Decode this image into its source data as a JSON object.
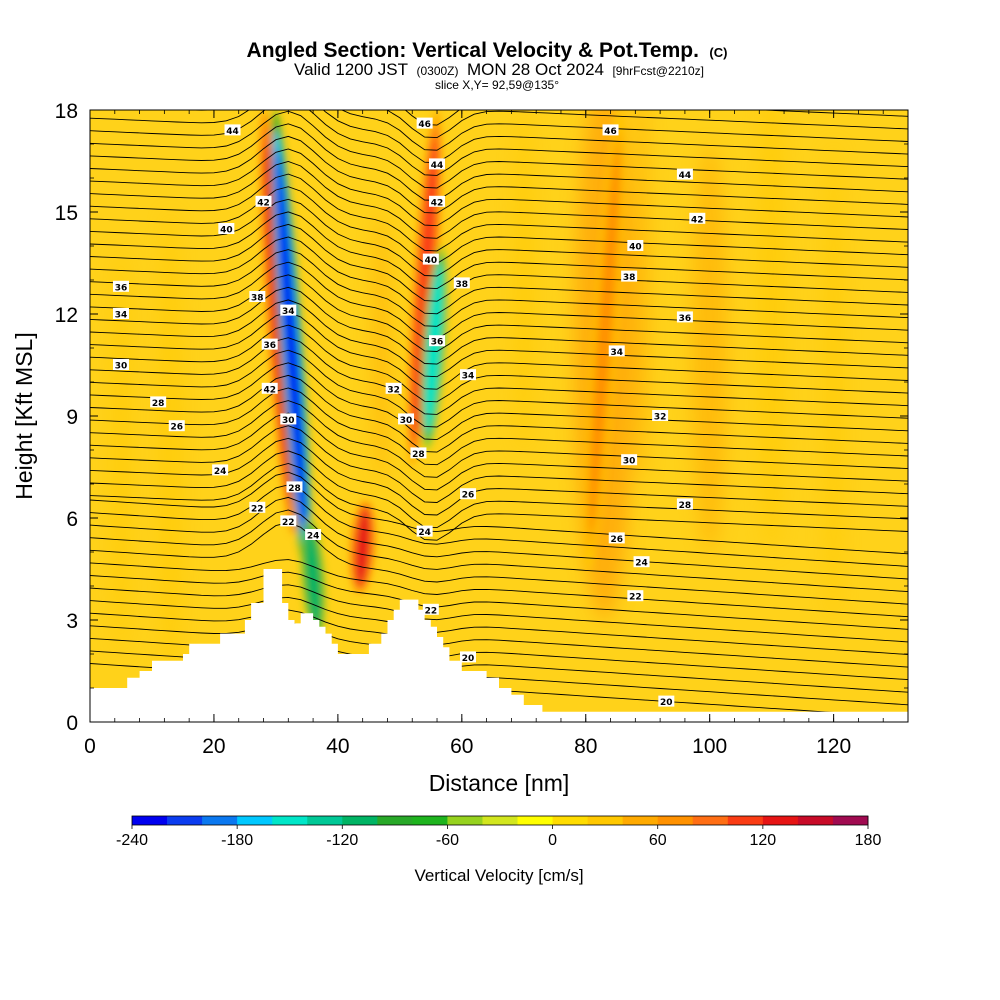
{
  "title": {
    "main": "Angled Section: Vertical Velocity & Pot.Temp.",
    "main_tag": "(C)",
    "valid_a": "Valid 1200 JST",
    "valid_b": "(0300Z)",
    "valid_c": "MON 28 Oct 2024",
    "valid_d": "[9hrFcst@2210z]",
    "slice": "slice X,Y= 92,59@135°"
  },
  "colors": {
    "background_field": "#FFD21A",
    "terrain": "#FFFFFF",
    "contour_line": "#000000",
    "scale": [
      "#0000F0",
      "#0A3CF0",
      "#0A78F0",
      "#00C8FF",
      "#00E6C8",
      "#00C896",
      "#00B464",
      "#28A828",
      "#1EB41E",
      "#96D21E",
      "#D2E61E",
      "#FFFF00",
      "#FFDC00",
      "#FFC800",
      "#FFAA00",
      "#FF9100",
      "#FF6E14",
      "#FA3C14",
      "#E61414",
      "#C80A28",
      "#A00A50",
      "#780A78",
      "#500A8C"
    ]
  },
  "chart_data": {
    "type": "heatmap",
    "xlabel": "Distance [nm]",
    "ylabel": "Height [Kft MSL]",
    "xlim": [
      0,
      132
    ],
    "ylim": [
      0,
      18
    ],
    "x_ticks": [
      0,
      20,
      40,
      60,
      80,
      100,
      120
    ],
    "y_ticks": [
      0,
      3,
      6,
      9,
      12,
      15,
      18
    ],
    "colorbar": {
      "label": "Vertical Velocity [cm/s]",
      "min": -240,
      "max": 180,
      "step": 20,
      "tick_values": [
        -240,
        -180,
        -120,
        -60,
        0,
        60,
        120,
        180
      ]
    },
    "terrain_profile": [
      [
        0,
        1.0
      ],
      [
        5,
        1.0
      ],
      [
        6,
        1.3
      ],
      [
        8,
        1.5
      ],
      [
        10,
        1.5
      ],
      [
        10,
        1.8
      ],
      [
        13,
        1.8
      ],
      [
        15,
        2.0
      ],
      [
        16,
        2.3
      ],
      [
        20,
        2.3
      ],
      [
        21,
        2.6
      ],
      [
        24,
        2.6
      ],
      [
        25,
        3.0
      ],
      [
        26,
        3.5
      ],
      [
        28,
        3.5
      ],
      [
        28,
        4.5
      ],
      [
        30,
        4.5
      ],
      [
        31,
        3.5
      ],
      [
        32,
        3.0
      ],
      [
        33,
        2.9
      ],
      [
        34,
        3.2
      ],
      [
        35,
        3.2
      ],
      [
        36,
        3.0
      ],
      [
        37,
        2.8
      ],
      [
        38,
        2.6
      ],
      [
        39,
        2.3
      ],
      [
        40,
        2.0
      ],
      [
        43,
        2.0
      ],
      [
        45,
        2.3
      ],
      [
        47,
        2.6
      ],
      [
        48,
        3.0
      ],
      [
        49,
        3.3
      ],
      [
        50,
        3.6
      ],
      [
        52,
        3.6
      ],
      [
        53,
        3.3
      ],
      [
        54,
        3.0
      ],
      [
        55,
        2.8
      ],
      [
        56,
        2.5
      ],
      [
        57,
        2.2
      ],
      [
        58,
        1.8
      ],
      [
        60,
        1.5
      ],
      [
        62,
        1.5
      ],
      [
        64,
        1.3
      ],
      [
        66,
        1.0
      ],
      [
        68,
        0.8
      ],
      [
        70,
        0.5
      ],
      [
        73,
        0.3
      ],
      [
        132,
        0.3
      ]
    ],
    "isentropes": {
      "units": "C",
      "labels": [
        {
          "x": 23,
          "y": 17.4,
          "value": "44"
        },
        {
          "x": 28,
          "y": 15.3,
          "value": "42"
        },
        {
          "x": 22,
          "y": 14.5,
          "value": "40"
        },
        {
          "x": 27,
          "y": 12.5,
          "value": "38"
        },
        {
          "x": 32,
          "y": 12.1,
          "value": "34"
        },
        {
          "x": 5,
          "y": 12.8,
          "value": "36"
        },
        {
          "x": 5,
          "y": 12.0,
          "value": "34"
        },
        {
          "x": 29,
          "y": 11.1,
          "value": "36"
        },
        {
          "x": 5,
          "y": 10.5,
          "value": "30"
        },
        {
          "x": 29,
          "y": 9.8,
          "value": "42"
        },
        {
          "x": 11,
          "y": 9.4,
          "value": "28"
        },
        {
          "x": 32,
          "y": 8.9,
          "value": "30"
        },
        {
          "x": 14,
          "y": 8.7,
          "value": "26"
        },
        {
          "x": 21,
          "y": 7.4,
          "value": "24"
        },
        {
          "x": 33,
          "y": 6.9,
          "value": "28"
        },
        {
          "x": 27,
          "y": 6.3,
          "value": "22"
        },
        {
          "x": 32,
          "y": 5.9,
          "value": "22"
        },
        {
          "x": 36,
          "y": 5.5,
          "value": "24"
        },
        {
          "x": 54,
          "y": 17.6,
          "value": "46"
        },
        {
          "x": 84,
          "y": 17.4,
          "value": "46"
        },
        {
          "x": 56,
          "y": 16.4,
          "value": "44"
        },
        {
          "x": 96,
          "y": 16.1,
          "value": "44"
        },
        {
          "x": 56,
          "y": 15.3,
          "value": "42"
        },
        {
          "x": 98,
          "y": 14.8,
          "value": "42"
        },
        {
          "x": 55,
          "y": 13.6,
          "value": "40"
        },
        {
          "x": 88,
          "y": 14.0,
          "value": "40"
        },
        {
          "x": 60,
          "y": 12.9,
          "value": "38"
        },
        {
          "x": 87,
          "y": 13.1,
          "value": "38"
        },
        {
          "x": 56,
          "y": 11.2,
          "value": "36"
        },
        {
          "x": 96,
          "y": 11.9,
          "value": "36"
        },
        {
          "x": 49,
          "y": 9.8,
          "value": "32"
        },
        {
          "x": 61,
          "y": 10.2,
          "value": "34"
        },
        {
          "x": 85,
          "y": 10.9,
          "value": "34"
        },
        {
          "x": 51,
          "y": 8.9,
          "value": "30"
        },
        {
          "x": 92,
          "y": 9.0,
          "value": "32"
        },
        {
          "x": 53,
          "y": 7.9,
          "value": "28"
        },
        {
          "x": 87,
          "y": 7.7,
          "value": "30"
        },
        {
          "x": 61,
          "y": 6.7,
          "value": "26"
        },
        {
          "x": 96,
          "y": 6.4,
          "value": "28"
        },
        {
          "x": 54,
          "y": 5.6,
          "value": "24"
        },
        {
          "x": 85,
          "y": 5.4,
          "value": "26"
        },
        {
          "x": 89,
          "y": 4.7,
          "value": "24"
        },
        {
          "x": 55,
          "y": 3.3,
          "value": "22"
        },
        {
          "x": 88,
          "y": 3.7,
          "value": "22"
        },
        {
          "x": 61,
          "y": 1.9,
          "value": "20"
        },
        {
          "x": 93,
          "y": 0.6,
          "value": "20"
        }
      ]
    },
    "velocity_features": [
      {
        "kind": "updraft",
        "x": 30.5,
        "y_bottom": 5.5,
        "y_top": 18,
        "peak": 120
      },
      {
        "kind": "downdraft",
        "x": 32.5,
        "y_bottom": 4.0,
        "y_top": 18,
        "peak": -240
      },
      {
        "kind": "downdraft",
        "x": 36,
        "y_bottom": 2.5,
        "y_top": 6,
        "peak": -120
      },
      {
        "kind": "updraft",
        "x": 44,
        "y_bottom": 3.8,
        "y_top": 6.5,
        "peak": 130
      },
      {
        "kind": "updraft",
        "x": 54,
        "y_bottom": 7.5,
        "y_top": 18,
        "peak": 110
      },
      {
        "kind": "downdraft",
        "x": 55.5,
        "y_bottom": 8.0,
        "y_top": 14,
        "peak": -150
      },
      {
        "kind": "updraft",
        "x": 83,
        "y_bottom": 4.5,
        "y_top": 18,
        "peak": 70
      }
    ]
  }
}
